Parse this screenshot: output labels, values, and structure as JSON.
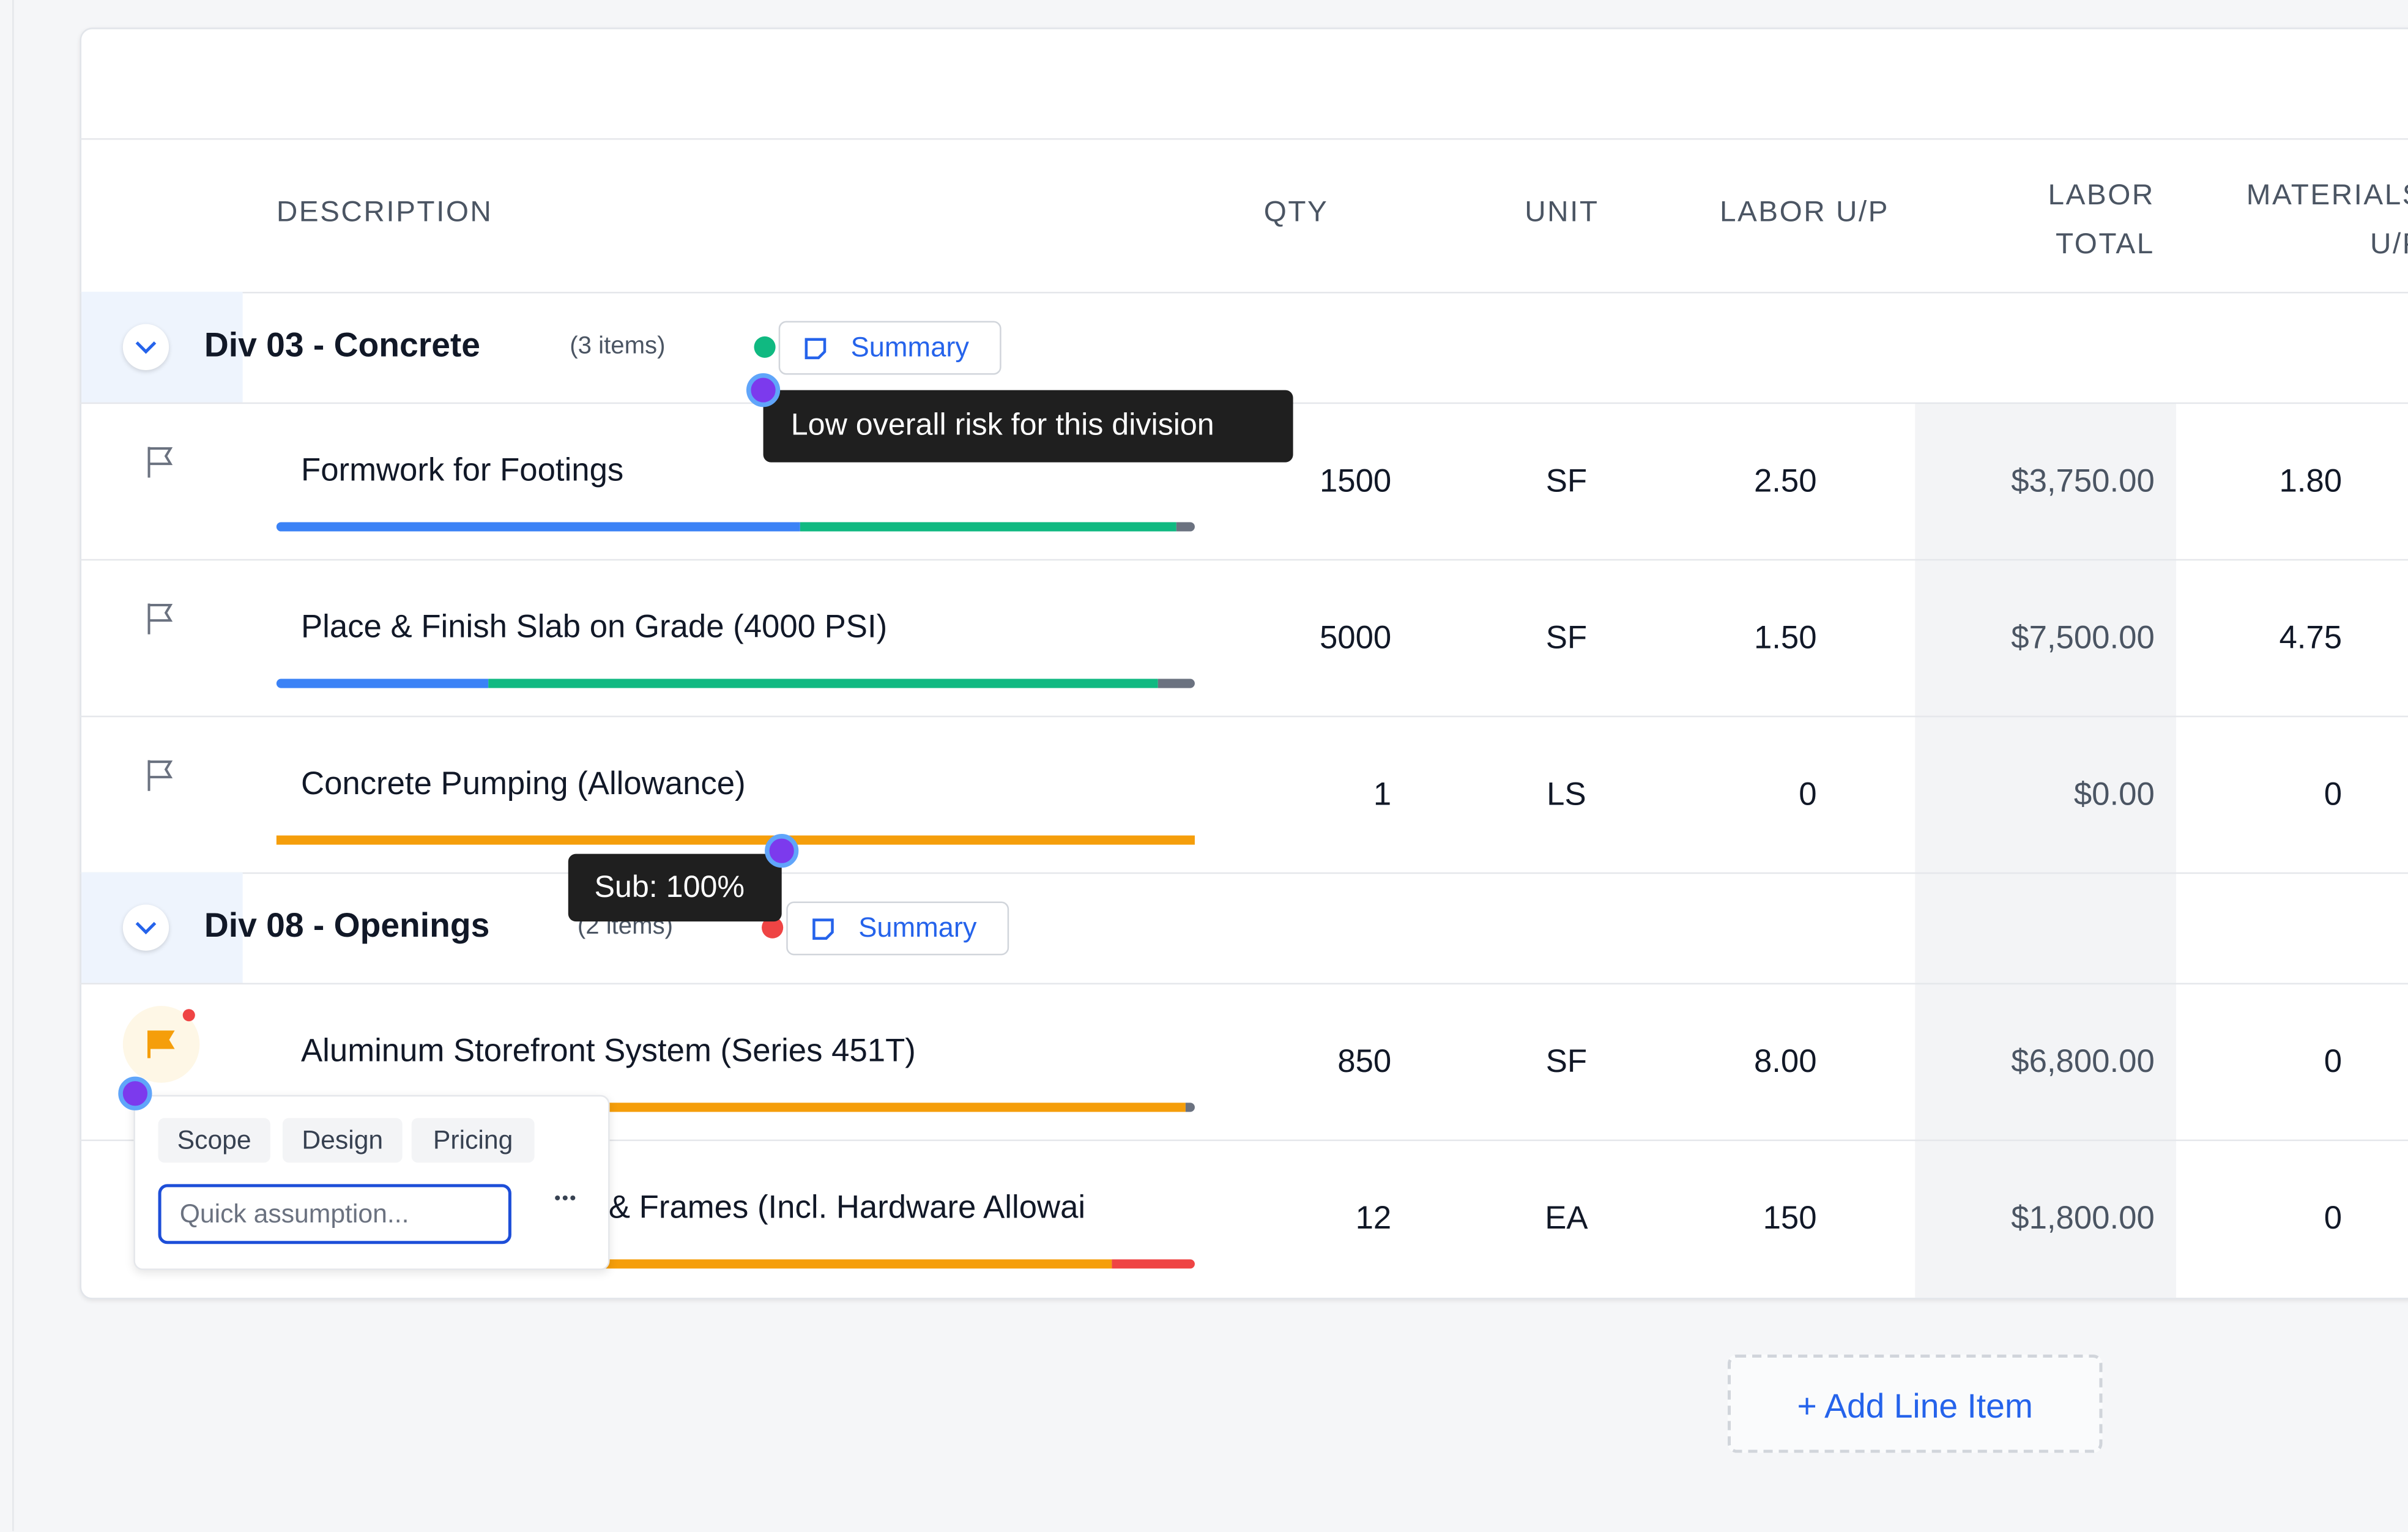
{
  "header": {
    "columns": [
      "DESCRIPTION",
      "QTY",
      "UNIT",
      "LABOR U/P",
      "LABOR TOTAL",
      "MATERIALS U/P"
    ]
  },
  "divisions": [
    {
      "title": "Div 03 - Concrete",
      "count": "(3 items)",
      "risk_color": "#10b981",
      "summary": "Summary",
      "rows": [
        {
          "name": "Formwork for Footings",
          "qty": "1500",
          "unit": "SF",
          "labor_up": "2.50",
          "labor_total": "$3,750.00",
          "materials_up": "1.80",
          "flag": false,
          "bars": [
            {
              "color": "#3b82f6",
              "value": 57
            },
            {
              "color": "#10b981",
              "value": 41
            },
            {
              "color": "#6b7280",
              "value": 2
            }
          ]
        },
        {
          "name": "Place & Finish Slab on Grade (4000 PSI)",
          "qty": "5000",
          "unit": "SF",
          "labor_up": "1.50",
          "labor_total": "$7,500.00",
          "materials_up": "4.75",
          "flag": false,
          "bars": [
            {
              "color": "#3b82f6",
              "value": 23
            },
            {
              "color": "#10b981",
              "value": 73
            },
            {
              "color": "#6b7280",
              "value": 4
            }
          ]
        },
        {
          "name": "Concrete Pumping (Allowance)",
          "qty": "1",
          "unit": "LS",
          "labor_up": "0",
          "labor_total": "$0.00",
          "materials_up": "0",
          "flag": false,
          "bars": [
            {
              "color": "#f59e0b",
              "value": 100
            }
          ]
        }
      ]
    },
    {
      "title": "Div 08 - Openings",
      "count": "(2 items)",
      "risk_color": "#ef4444",
      "summary": "Summary",
      "rows": [
        {
          "name": "Aluminum Storefront System (Series 451T)",
          "qty": "850",
          "unit": "SF",
          "labor_up": "8.00",
          "labor_total": "$6,800.00",
          "materials_up": "0",
          "flag": true,
          "bars": [
            {
              "color": "#f59e0b",
              "value": 99
            },
            {
              "color": "#6b7280",
              "value": 1
            }
          ]
        },
        {
          "name": "s & Frames (Incl. Hardware Allowai",
          "qty": "12",
          "unit": "EA",
          "labor_up": "150",
          "labor_total": "$1,800.00",
          "materials_up": "0",
          "flag": false,
          "bars": [
            {
              "color": "#f59e0b",
              "value": 91
            },
            {
              "color": "#ef4444",
              "value": 9
            }
          ]
        }
      ]
    }
  ],
  "tooltips": {
    "risk": "Low overall risk for this division",
    "sub": "Sub: 100%"
  },
  "popover": {
    "chips": [
      "Scope",
      "Design",
      "Pricing"
    ],
    "placeholder": "Quick assumption..."
  },
  "add_button": "+ Add Line Item"
}
